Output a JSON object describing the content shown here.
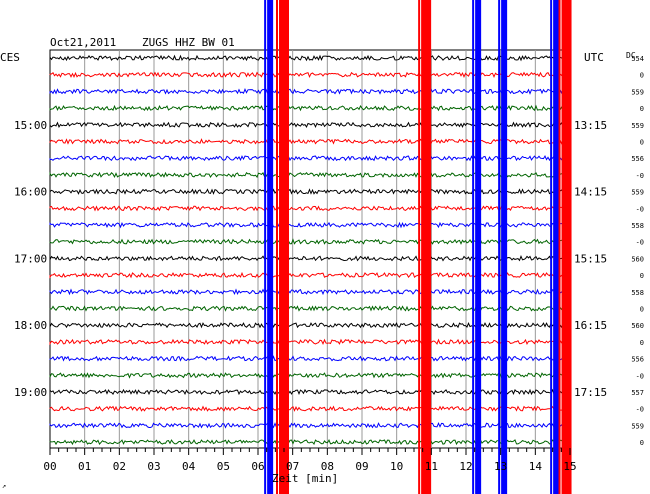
{
  "header": {
    "date": "Oct21,2011",
    "station": "ZUGS HHZ BW 01",
    "left_zone": "CES",
    "right_zone": "UTC",
    "dc_label": "DC"
  },
  "chart_data": {
    "type": "line",
    "title": "Oct21,2011   ZUGS HHZ BW 01",
    "xlabel": "Zeit [min]",
    "xlim": [
      0,
      15
    ],
    "x_ticks": [
      "00",
      "01",
      "02",
      "03",
      "04",
      "05",
      "06",
      "07",
      "08",
      "09",
      "10",
      "11",
      "12",
      "13",
      "14",
      "15"
    ],
    "trace_count": 24,
    "trace_colors": [
      "#000000",
      "#ff0000",
      "#0000ff",
      "#006400"
    ],
    "left_hour_labels": [
      {
        "trace": 4,
        "label": "15:00"
      },
      {
        "trace": 8,
        "label": "16:00"
      },
      {
        "trace": 12,
        "label": "17:00"
      },
      {
        "trace": 16,
        "label": "18:00"
      },
      {
        "trace": 20,
        "label": "19:00"
      }
    ],
    "right_hour_labels": [
      {
        "trace": 4,
        "label": "13:15"
      },
      {
        "trace": 8,
        "label": "14:15"
      },
      {
        "trace": 12,
        "label": "15:15"
      },
      {
        "trace": 16,
        "label": "16:15"
      },
      {
        "trace": 20,
        "label": "17:15"
      }
    ],
    "dc_values": [
      "554",
      "0",
      "559",
      "0",
      "559",
      "0",
      "556",
      "-0",
      "559",
      "-0",
      "558",
      "-0",
      "560",
      "0",
      "558",
      "0",
      "560",
      "0",
      "556",
      "-0",
      "557",
      "-0",
      "559",
      "0"
    ],
    "events": [
      {
        "minute": 6.35,
        "color": "#0000ff",
        "amplitude": "clipped"
      },
      {
        "minute": 6.75,
        "color": "#ff0000",
        "amplitude": "clipped"
      },
      {
        "minute": 10.85,
        "color": "#ff0000",
        "amplitude": "clipped"
      },
      {
        "minute": 12.35,
        "color": "#0000ff",
        "amplitude": "clipped"
      },
      {
        "minute": 13.1,
        "color": "#0000ff",
        "amplitude": "clipped"
      },
      {
        "minute": 14.6,
        "color": "#0000ff",
        "amplitude": "clipped"
      },
      {
        "minute": 14.9,
        "color": "#ff0000",
        "amplitude": "clipped"
      }
    ],
    "grid": true
  }
}
